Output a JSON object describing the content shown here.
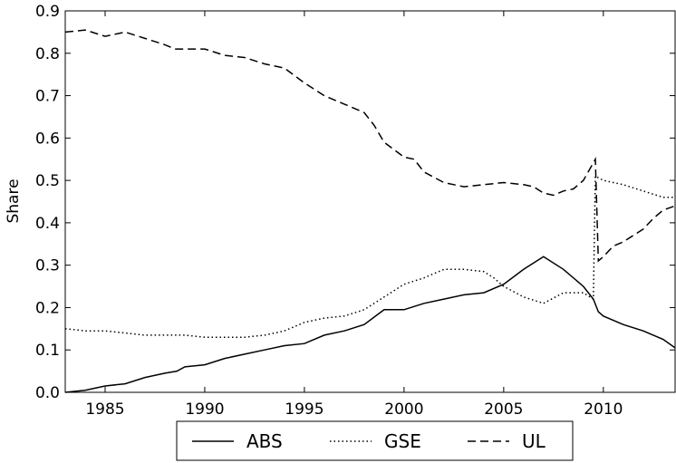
{
  "chart_data": {
    "type": "line",
    "ylabel": "Share",
    "xlim": [
      1983,
      2013.6
    ],
    "ylim": [
      0,
      0.9
    ],
    "xticks": [
      1985,
      1990,
      1995,
      2000,
      2005,
      2010
    ],
    "yticks": [
      {
        "value": 0,
        "label": "0.0"
      },
      0.1,
      0.2,
      0.3,
      0.4,
      0.5,
      0.6,
      0.7,
      0.8,
      0.9
    ],
    "legend": "below",
    "series": [
      {
        "name": "ABS",
        "color": "#000000",
        "linestyle": "solid",
        "x": [
          1983,
          1984,
          1985,
          1986,
          1987,
          1988,
          1988.6,
          1989,
          1990,
          1991,
          1992,
          1993,
          1994,
          1995,
          1996,
          1997,
          1998,
          1999,
          2000,
          2001,
          2002,
          2003,
          2004,
          2005,
          2006,
          2007,
          2008,
          2009,
          2009.5,
          2009.75,
          2010,
          2011,
          2012,
          2013,
          2013.6
        ],
        "values": [
          0,
          0.005,
          0.015,
          0.02,
          0.035,
          0.045,
          0.05,
          0.06,
          0.065,
          0.08,
          0.09,
          0.1,
          0.11,
          0.115,
          0.135,
          0.145,
          0.16,
          0.195,
          0.195,
          0.21,
          0.22,
          0.23,
          0.235,
          0.255,
          0.29,
          0.32,
          0.29,
          0.25,
          0.22,
          0.19,
          0.18,
          0.16,
          0.145,
          0.125,
          0.105
        ]
      },
      {
        "name": "GSE",
        "color": "#000000",
        "linestyle": "dotted",
        "x": [
          1983,
          1984,
          1985,
          1986,
          1987,
          1988,
          1989,
          1990,
          1991,
          1992,
          1993,
          1994,
          1995,
          1996,
          1997,
          1998,
          1999,
          2000,
          2001,
          2002,
          2003,
          2004,
          2004.5,
          2005,
          2006,
          2007,
          2008,
          2009,
          2009.5,
          2009.6,
          2010,
          2011,
          2012,
          2013,
          2013.6
        ],
        "values": [
          0.15,
          0.145,
          0.145,
          0.14,
          0.135,
          0.135,
          0.135,
          0.13,
          0.13,
          0.13,
          0.135,
          0.145,
          0.165,
          0.175,
          0.18,
          0.195,
          0.225,
          0.255,
          0.27,
          0.29,
          0.29,
          0.285,
          0.27,
          0.25,
          0.225,
          0.21,
          0.235,
          0.235,
          0.22,
          0.51,
          0.5,
          0.49,
          0.475,
          0.46,
          0.46
        ]
      },
      {
        "name": "UL",
        "color": "#000000",
        "linestyle": "dashed",
        "x": [
          1983,
          1984,
          1985,
          1986,
          1987,
          1988,
          1988.5,
          1990,
          1991,
          1992,
          1993,
          1994,
          1995,
          1996,
          1997,
          1998,
          1998.5,
          1999,
          2000,
          2000.5,
          2001,
          2002,
          2003,
          2004,
          2005,
          2006,
          2006.5,
          2007,
          2007.5,
          2008,
          2008.5,
          2009,
          2009.6,
          2009.75,
          2010,
          2010.5,
          2011,
          2012,
          2012.5,
          2013,
          2013.6
        ],
        "values": [
          0.85,
          0.855,
          0.84,
          0.85,
          0.835,
          0.82,
          0.81,
          0.81,
          0.795,
          0.79,
          0.775,
          0.765,
          0.73,
          0.7,
          0.68,
          0.66,
          0.63,
          0.59,
          0.555,
          0.55,
          0.52,
          0.495,
          0.485,
          0.49,
          0.495,
          0.49,
          0.485,
          0.47,
          0.465,
          0.475,
          0.48,
          0.5,
          0.55,
          0.31,
          0.32,
          0.345,
          0.355,
          0.385,
          0.41,
          0.43,
          0.44
        ]
      }
    ]
  }
}
